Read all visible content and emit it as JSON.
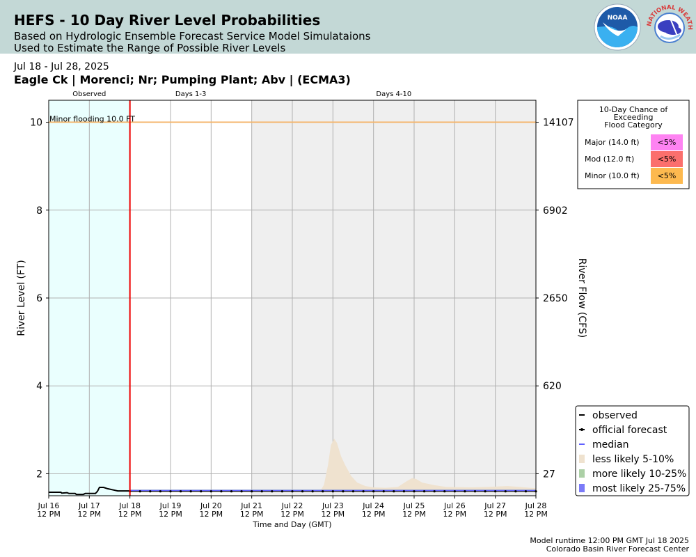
{
  "banner": {
    "title": "HEFS - 10 Day River Level Probabilities",
    "subtitle1": "Based on Hydrologic Ensemble Forecast Service Model Simulataions",
    "subtitle2": "Used to Estimate the Range of Possible River Levels"
  },
  "logos": {
    "noaa_text": "NOAA",
    "nws_text": "NATIONAL WEATHER SERVICE",
    "noaa_icon": "noaa-logo",
    "nws_icon": "nws-logo"
  },
  "date_range": "Jul 18 - Jul 28, 2025",
  "station_title": "Eagle Ck | Morenci; Nr; Pumping Plant; Abv | (ECMA3)",
  "chart_data": {
    "type": "area",
    "xlabel": "Time and Day (GMT)",
    "ylabel": "River Level (FT)",
    "ylabel_right": "River Flow (CFS)",
    "xlim": [
      "2025-07-16 12:00",
      "2025-07-28 12:00"
    ],
    "ylim": [
      1.5,
      10.5
    ],
    "grid": true,
    "xticks": [
      {
        "day": 0,
        "line1": "Jul 16",
        "line2": "12 PM"
      },
      {
        "day": 1,
        "line1": "Jul 17",
        "line2": "12 PM"
      },
      {
        "day": 2,
        "line1": "Jul 18",
        "line2": "12 PM"
      },
      {
        "day": 3,
        "line1": "Jul 19",
        "line2": "12 PM"
      },
      {
        "day": 4,
        "line1": "Jul 20",
        "line2": "12 PM"
      },
      {
        "day": 5,
        "line1": "Jul 21",
        "line2": "12 PM"
      },
      {
        "day": 6,
        "line1": "Jul 22",
        "line2": "12 PM"
      },
      {
        "day": 7,
        "line1": "Jul 23",
        "line2": "12 PM"
      },
      {
        "day": 8,
        "line1": "Jul 24",
        "line2": "12 PM"
      },
      {
        "day": 9,
        "line1": "Jul 25",
        "line2": "12 PM"
      },
      {
        "day": 10,
        "line1": "Jul 26",
        "line2": "12 PM"
      },
      {
        "day": 11,
        "line1": "Jul 27",
        "line2": "12 PM"
      },
      {
        "day": 12,
        "line1": "Jul 28",
        "line2": "12 PM"
      }
    ],
    "yticks_left": [
      2,
      4,
      6,
      8,
      10
    ],
    "yticks_right": [
      {
        "stage": 2,
        "label": "27"
      },
      {
        "stage": 4,
        "label": "620"
      },
      {
        "stage": 6,
        "label": "2650"
      },
      {
        "stage": 8,
        "label": "6902"
      },
      {
        "stage": 10,
        "label": "14107"
      }
    ],
    "periods": [
      {
        "label": "Observed",
        "start": 0,
        "end": 2,
        "color": "#eafffe"
      },
      {
        "label": "Days 1-3",
        "start": 2,
        "end": 5,
        "color": "#ffffff"
      },
      {
        "label": "Days 4-10",
        "start": 5,
        "end": 12,
        "color": "#efefef"
      }
    ],
    "forecast_start_day": 2,
    "flood_line": {
      "label": "Minor flooding 10.0 FT",
      "value": 10.0,
      "color": "#f4b66c"
    },
    "observed": {
      "name": "observed",
      "color": "#000000",
      "points": [
        [
          0,
          1.58
        ],
        [
          0.3,
          1.58
        ],
        [
          0.32,
          1.56
        ],
        [
          0.45,
          1.57
        ],
        [
          0.5,
          1.55
        ],
        [
          0.65,
          1.55
        ],
        [
          0.68,
          1.53
        ],
        [
          0.85,
          1.53
        ],
        [
          0.9,
          1.55
        ],
        [
          1.15,
          1.55
        ],
        [
          1.2,
          1.6
        ],
        [
          1.25,
          1.69
        ],
        [
          1.35,
          1.69
        ],
        [
          1.45,
          1.66
        ],
        [
          1.6,
          1.63
        ],
        [
          1.7,
          1.61
        ],
        [
          2.0,
          1.61
        ]
      ]
    },
    "official_forecast": {
      "name": "official forecast",
      "color": "#000000",
      "start_day": 2,
      "end_day": 12,
      "step_days": 0.25,
      "value": 1.6
    },
    "median": {
      "name": "median",
      "color": "#6060ff",
      "value": 1.62
    },
    "bands": [
      {
        "name": "less likely 5-10%",
        "color": "#efe2cf",
        "upper": [
          [
            2,
            1.62
          ],
          [
            6.7,
            1.62
          ],
          [
            6.78,
            1.75
          ],
          [
            6.88,
            2.2
          ],
          [
            6.95,
            2.65
          ],
          [
            7.03,
            2.8
          ],
          [
            7.1,
            2.7
          ],
          [
            7.2,
            2.4
          ],
          [
            7.3,
            2.2
          ],
          [
            7.45,
            1.95
          ],
          [
            7.6,
            1.8
          ],
          [
            7.8,
            1.72
          ],
          [
            8.0,
            1.69
          ],
          [
            8.3,
            1.68
          ],
          [
            8.6,
            1.7
          ],
          [
            8.8,
            1.82
          ],
          [
            8.95,
            1.9
          ],
          [
            9.05,
            1.88
          ],
          [
            9.2,
            1.8
          ],
          [
            9.5,
            1.74
          ],
          [
            9.8,
            1.7
          ],
          [
            10.4,
            1.69
          ],
          [
            10.8,
            1.7
          ],
          [
            11.3,
            1.72
          ],
          [
            11.6,
            1.7
          ],
          [
            12,
            1.67
          ]
        ],
        "lower": 1.58
      },
      {
        "name": "more likely 10-25%",
        "color": "#acd0a6",
        "upper_value": 1.64,
        "lower": 1.59
      },
      {
        "name": "most likely 25-75%",
        "color": "#7b7bf8",
        "upper_value": 1.625,
        "lower": 1.6
      }
    ],
    "flood_table": {
      "title": [
        "10-Day Chance of",
        "Exceeding",
        "Flood Category"
      ],
      "rows": [
        {
          "category": "Major (14.0 ft)",
          "value": "<5%",
          "color": "#fe83f2"
        },
        {
          "category": "Mod (12.0 ft)",
          "value": "<5%",
          "color": "#fb6f6d"
        },
        {
          "category": "Minor (10.0 ft)",
          "value": "<5%",
          "color": "#fdb94f"
        }
      ]
    },
    "legend": {
      "placement": "bottom-right",
      "items": [
        {
          "label": "observed",
          "kind": "line",
          "color": "#000000"
        },
        {
          "label": "official forecast",
          "kind": "line-dot",
          "color": "#000000"
        },
        {
          "label": "median",
          "kind": "line",
          "color": "#6060ff"
        },
        {
          "label": "less likely 5-10%",
          "kind": "patch",
          "color": "#efe2cf"
        },
        {
          "label": "more likely 10-25%",
          "kind": "patch",
          "color": "#acd0a6"
        },
        {
          "label": "most likely 25-75%",
          "kind": "patch",
          "color": "#7b7bf8"
        }
      ]
    }
  },
  "footer": {
    "runtime": "Model runtime 12:00 PM GMT Jul 18 2025",
    "center": "Colorado Basin River Forecast Center"
  }
}
